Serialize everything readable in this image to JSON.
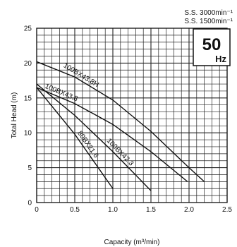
{
  "chart_data": {
    "type": "line",
    "xlabel": "Capacity (m³/min)",
    "ylabel": "Total Head (m)",
    "xlim": [
      0,
      2.5
    ],
    "ylim": [
      0,
      25
    ],
    "xticks": [
      "0",
      "0.5",
      "1.0",
      "1.5",
      "2.0",
      "2.5"
    ],
    "yticks": [
      "0",
      "5",
      "10",
      "15",
      "20",
      "25"
    ],
    "grid": true,
    "legend": {
      "speed_lines": [
        "S.S. 3000min⁻¹",
        "S.S. 1500min⁻¹"
      ],
      "frequency_value": "50",
      "frequency_unit": "Hz",
      "placement": "top-right"
    },
    "series": [
      {
        "name": "100BX43.8H",
        "x": [
          0,
          0.5,
          1.0,
          1.5,
          2.0,
          2.2
        ],
        "y": [
          20.2,
          18.0,
          14.7,
          10.2,
          5.0,
          3.0
        ]
      },
      {
        "name": "100BX43.8",
        "x": [
          0,
          0.5,
          1.0,
          1.5,
          1.98
        ],
        "y": [
          16.5,
          14.2,
          11.2,
          7.3,
          3.0
        ]
      },
      {
        "name": "100BX42.3",
        "x": [
          0,
          0.5,
          1.0,
          1.5
        ],
        "y": [
          17.0,
          12.5,
          7.3,
          1.7
        ]
      },
      {
        "name": "80BX21.6",
        "x": [
          0,
          0.5,
          1.0
        ],
        "y": [
          16.5,
          9.8,
          2.0
        ]
      }
    ]
  }
}
